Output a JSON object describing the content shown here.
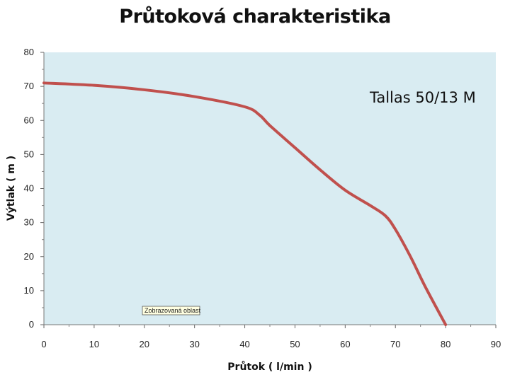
{
  "chart_data": {
    "type": "line",
    "title": "Průtoková charakteristika",
    "xlabel": "Průtok ( l/min )",
    "ylabel": "Výtlak ( m )",
    "xlim": [
      0,
      90
    ],
    "ylim": [
      0,
      80
    ],
    "x_ticks": [
      0,
      10,
      20,
      30,
      40,
      50,
      60,
      70,
      80,
      90
    ],
    "y_ticks": [
      0,
      10,
      20,
      30,
      40,
      50,
      60,
      70,
      80
    ],
    "grid": false,
    "plot_background": "#d9ecf2",
    "series": [
      {
        "color": "#c0504d",
        "x": [
          0,
          10,
          20,
          30,
          40,
          43,
          45,
          50,
          55,
          60,
          65,
          68,
          70,
          73,
          76,
          80
        ],
        "y": [
          71,
          70.3,
          69,
          67,
          64,
          61.5,
          58.5,
          52,
          45.5,
          39.5,
          35,
          32,
          28,
          20,
          11,
          0
        ]
      }
    ],
    "annotation": "Tallas 50/13 M",
    "tooltip": "Zobrazovaná oblast"
  }
}
